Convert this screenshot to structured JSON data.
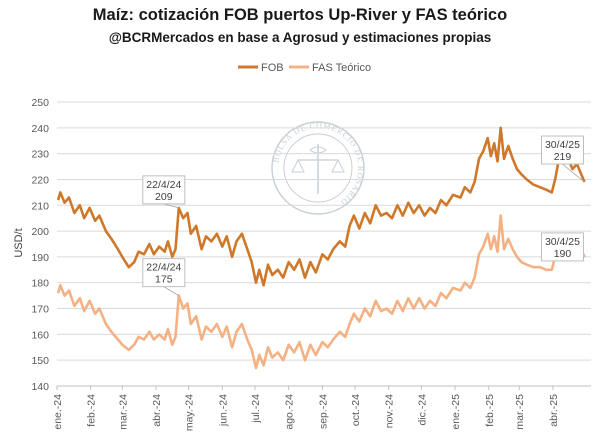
{
  "chart_data": {
    "type": "line",
    "title": "Maíz: cotización FOB puertos Up-River y FAS teórico",
    "subtitle": "@BCRMercados en base a Agrosud y estimaciones propias",
    "ylabel": "USD/t",
    "xlabel": "",
    "ylim": [
      140,
      250
    ],
    "yticks": [
      140,
      150,
      160,
      170,
      180,
      190,
      200,
      210,
      220,
      230,
      240,
      250
    ],
    "grid": "horizontal",
    "legend_position": "top-center",
    "xtick_labels": [
      "ene.-24",
      "feb.-24",
      "mar.-24",
      "abr.-24",
      "may.-24",
      "jun.-24",
      "jul.-24",
      "ago.-24",
      "sep.-24",
      "oct.-24",
      "nov.-24",
      "dic.-24",
      "ene.-25",
      "feb.-25",
      "mar.-25",
      "abr.-25"
    ],
    "watermark": "BOLSA DE COMERCIO DE ROSARIO",
    "series": [
      {
        "name": "FOB",
        "color": "#d0782a",
        "points": [
          [
            "2024-01-02",
            212
          ],
          [
            "2024-01-04",
            215
          ],
          [
            "2024-01-08",
            211
          ],
          [
            "2024-01-12",
            213
          ],
          [
            "2024-01-17",
            207
          ],
          [
            "2024-01-22",
            210
          ],
          [
            "2024-01-26",
            205
          ],
          [
            "2024-01-31",
            209
          ],
          [
            "2024-02-05",
            204
          ],
          [
            "2024-02-09",
            206
          ],
          [
            "2024-02-15",
            200
          ],
          [
            "2024-02-20",
            197
          ],
          [
            "2024-02-26",
            193
          ],
          [
            "2024-03-01",
            190
          ],
          [
            "2024-03-07",
            186
          ],
          [
            "2024-03-12",
            188
          ],
          [
            "2024-03-16",
            192
          ],
          [
            "2024-03-21",
            191
          ],
          [
            "2024-03-26",
            195
          ],
          [
            "2024-03-30",
            191
          ],
          [
            "2024-04-04",
            194
          ],
          [
            "2024-04-09",
            192
          ],
          [
            "2024-04-12",
            196
          ],
          [
            "2024-04-16",
            190
          ],
          [
            "2024-04-19",
            193
          ],
          [
            "2024-04-22",
            209
          ],
          [
            "2024-04-26",
            205
          ],
          [
            "2024-04-30",
            207
          ],
          [
            "2024-05-03",
            199
          ],
          [
            "2024-05-08",
            202
          ],
          [
            "2024-05-13",
            193
          ],
          [
            "2024-05-17",
            198
          ],
          [
            "2024-05-22",
            196
          ],
          [
            "2024-05-27",
            199
          ],
          [
            "2024-06-01",
            194
          ],
          [
            "2024-06-05",
            198
          ],
          [
            "2024-06-10",
            190
          ],
          [
            "2024-06-14",
            196
          ],
          [
            "2024-06-19",
            199
          ],
          [
            "2024-06-24",
            193
          ],
          [
            "2024-06-28",
            188
          ],
          [
            "2024-07-02",
            180
          ],
          [
            "2024-07-05",
            185
          ],
          [
            "2024-07-09",
            179
          ],
          [
            "2024-07-13",
            187
          ],
          [
            "2024-07-17",
            183
          ],
          [
            "2024-07-22",
            185
          ],
          [
            "2024-07-27",
            182
          ],
          [
            "2024-08-01",
            188
          ],
          [
            "2024-08-06",
            185
          ],
          [
            "2024-08-11",
            189
          ],
          [
            "2024-08-16",
            182
          ],
          [
            "2024-08-21",
            188
          ],
          [
            "2024-08-26",
            184
          ],
          [
            "2024-09-01",
            191
          ],
          [
            "2024-09-06",
            189
          ],
          [
            "2024-09-11",
            193
          ],
          [
            "2024-09-17",
            196
          ],
          [
            "2024-09-22",
            194
          ],
          [
            "2024-09-26",
            202
          ],
          [
            "2024-09-30",
            206
          ],
          [
            "2024-10-05",
            201
          ],
          [
            "2024-10-10",
            207
          ],
          [
            "2024-10-15",
            203
          ],
          [
            "2024-10-20",
            210
          ],
          [
            "2024-10-25",
            206
          ],
          [
            "2024-10-30",
            207
          ],
          [
            "2024-11-04",
            205
          ],
          [
            "2024-11-09",
            210
          ],
          [
            "2024-11-14",
            206
          ],
          [
            "2024-11-19",
            211
          ],
          [
            "2024-11-24",
            207
          ],
          [
            "2024-11-29",
            210
          ],
          [
            "2024-12-04",
            206
          ],
          [
            "2024-12-09",
            209
          ],
          [
            "2024-12-14",
            207
          ],
          [
            "2024-12-19",
            212
          ],
          [
            "2024-12-24",
            210
          ],
          [
            "2024-12-30",
            214
          ],
          [
            "2025-01-06",
            213
          ],
          [
            "2025-01-10",
            217
          ],
          [
            "2025-01-15",
            215
          ],
          [
            "2025-01-19",
            219
          ],
          [
            "2025-01-23",
            228
          ],
          [
            "2025-01-27",
            231
          ],
          [
            "2025-01-31",
            236
          ],
          [
            "2025-02-03",
            229
          ],
          [
            "2025-02-06",
            234
          ],
          [
            "2025-02-09",
            227
          ],
          [
            "2025-02-12",
            240
          ],
          [
            "2025-02-15",
            228
          ],
          [
            "2025-02-19",
            233
          ],
          [
            "2025-02-23",
            228
          ],
          [
            "2025-02-27",
            224
          ],
          [
            "2025-03-03",
            222
          ],
          [
            "2025-03-08",
            220
          ],
          [
            "2025-03-14",
            218
          ],
          [
            "2025-03-20",
            217
          ],
          [
            "2025-03-26",
            216
          ],
          [
            "2025-03-31",
            215
          ],
          [
            "2025-04-03",
            220
          ],
          [
            "2025-04-07",
            229
          ],
          [
            "2025-04-11",
            227
          ],
          [
            "2025-04-15",
            228
          ],
          [
            "2025-04-19",
            224
          ],
          [
            "2025-04-23",
            226
          ],
          [
            "2025-04-27",
            222
          ],
          [
            "2025-04-30",
            219
          ]
        ]
      },
      {
        "name": "FAS Teórico",
        "color": "#f4b183",
        "points": [
          [
            "2024-01-02",
            176
          ],
          [
            "2024-01-04",
            179
          ],
          [
            "2024-01-08",
            175
          ],
          [
            "2024-01-12",
            177
          ],
          [
            "2024-01-17",
            171
          ],
          [
            "2024-01-22",
            174
          ],
          [
            "2024-01-26",
            169
          ],
          [
            "2024-01-31",
            173
          ],
          [
            "2024-02-05",
            168
          ],
          [
            "2024-02-09",
            170
          ],
          [
            "2024-02-15",
            164
          ],
          [
            "2024-02-20",
            161
          ],
          [
            "2024-02-26",
            158
          ],
          [
            "2024-03-01",
            156
          ],
          [
            "2024-03-07",
            154
          ],
          [
            "2024-03-12",
            156
          ],
          [
            "2024-03-16",
            159
          ],
          [
            "2024-03-21",
            158
          ],
          [
            "2024-03-26",
            161
          ],
          [
            "2024-03-30",
            158
          ],
          [
            "2024-04-04",
            160
          ],
          [
            "2024-04-09",
            158
          ],
          [
            "2024-04-12",
            162
          ],
          [
            "2024-04-16",
            156
          ],
          [
            "2024-04-19",
            159
          ],
          [
            "2024-04-22",
            175
          ],
          [
            "2024-04-26",
            170
          ],
          [
            "2024-04-30",
            172
          ],
          [
            "2024-05-03",
            164
          ],
          [
            "2024-05-08",
            167
          ],
          [
            "2024-05-13",
            158
          ],
          [
            "2024-05-17",
            163
          ],
          [
            "2024-05-22",
            161
          ],
          [
            "2024-05-27",
            164
          ],
          [
            "2024-06-01",
            159
          ],
          [
            "2024-06-05",
            163
          ],
          [
            "2024-06-10",
            155
          ],
          [
            "2024-06-14",
            161
          ],
          [
            "2024-06-19",
            164
          ],
          [
            "2024-06-24",
            158
          ],
          [
            "2024-06-28",
            154
          ],
          [
            "2024-07-02",
            147
          ],
          [
            "2024-07-05",
            152
          ],
          [
            "2024-07-09",
            148
          ],
          [
            "2024-07-13",
            155
          ],
          [
            "2024-07-17",
            151
          ],
          [
            "2024-07-22",
            153
          ],
          [
            "2024-07-27",
            150
          ],
          [
            "2024-08-01",
            156
          ],
          [
            "2024-08-06",
            153
          ],
          [
            "2024-08-11",
            157
          ],
          [
            "2024-08-16",
            150
          ],
          [
            "2024-08-21",
            156
          ],
          [
            "2024-08-26",
            152
          ],
          [
            "2024-09-01",
            157
          ],
          [
            "2024-09-06",
            155
          ],
          [
            "2024-09-11",
            158
          ],
          [
            "2024-09-17",
            161
          ],
          [
            "2024-09-22",
            159
          ],
          [
            "2024-09-26",
            164
          ],
          [
            "2024-09-30",
            168
          ],
          [
            "2024-10-05",
            165
          ],
          [
            "2024-10-10",
            170
          ],
          [
            "2024-10-15",
            167
          ],
          [
            "2024-10-20",
            173
          ],
          [
            "2024-10-25",
            169
          ],
          [
            "2024-10-30",
            170
          ],
          [
            "2024-11-04",
            168
          ],
          [
            "2024-11-09",
            173
          ],
          [
            "2024-11-14",
            169
          ],
          [
            "2024-11-19",
            174
          ],
          [
            "2024-11-24",
            170
          ],
          [
            "2024-11-29",
            174
          ],
          [
            "2024-12-04",
            170
          ],
          [
            "2024-12-09",
            173
          ],
          [
            "2024-12-14",
            171
          ],
          [
            "2024-12-19",
            176
          ],
          [
            "2024-12-24",
            174
          ],
          [
            "2024-12-30",
            178
          ],
          [
            "2025-01-06",
            177
          ],
          [
            "2025-01-10",
            180
          ],
          [
            "2025-01-15",
            178
          ],
          [
            "2025-01-19",
            182
          ],
          [
            "2025-01-23",
            191
          ],
          [
            "2025-01-27",
            194
          ],
          [
            "2025-01-31",
            199
          ],
          [
            "2025-02-03",
            193
          ],
          [
            "2025-02-06",
            198
          ],
          [
            "2025-02-09",
            192
          ],
          [
            "2025-02-12",
            206
          ],
          [
            "2025-02-15",
            193
          ],
          [
            "2025-02-19",
            197
          ],
          [
            "2025-02-23",
            193
          ],
          [
            "2025-02-27",
            190
          ],
          [
            "2025-03-03",
            188
          ],
          [
            "2025-03-08",
            187
          ],
          [
            "2025-03-14",
            186
          ],
          [
            "2025-03-20",
            186
          ],
          [
            "2025-03-26",
            185
          ],
          [
            "2025-03-31",
            185
          ],
          [
            "2025-04-03",
            190
          ],
          [
            "2025-04-07",
            198
          ],
          [
            "2025-04-11",
            196
          ],
          [
            "2025-04-15",
            197
          ],
          [
            "2025-04-19",
            194
          ],
          [
            "2025-04-23",
            195
          ],
          [
            "2025-04-27",
            193
          ],
          [
            "2025-04-30",
            190
          ]
        ]
      }
    ],
    "annotations": [
      {
        "series": "FOB",
        "x": "2024-04-22",
        "y": 209,
        "date": "22/4/24",
        "value": "209"
      },
      {
        "series": "FAS Teórico",
        "x": "2024-04-22",
        "y": 175,
        "date": "22/4/24",
        "value": "175"
      },
      {
        "series": "FOB",
        "x": "2025-04-30",
        "y": 219,
        "date": "30/4/25",
        "value": "219"
      },
      {
        "series": "FAS Teórico",
        "x": "2025-04-30",
        "y": 190,
        "date": "30/4/25",
        "value": "190"
      }
    ]
  }
}
